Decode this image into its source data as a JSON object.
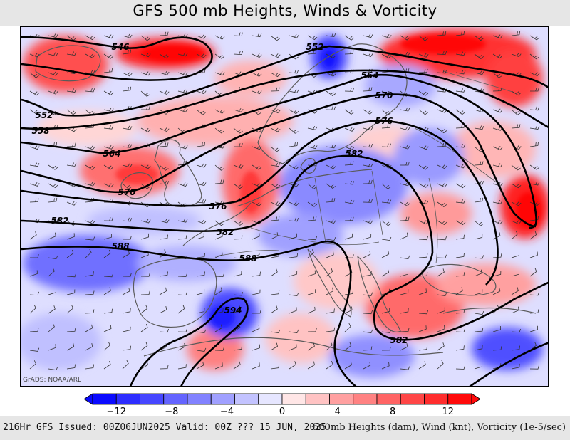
{
  "title": "GFS 500 mb Heights, Winds & Vorticity",
  "credit": "GrADS: NOAA/ARL",
  "footer": {
    "left": "216Hr GFS Issued: 00Z06JUN2025 Valid: 00Z ??? 15 JUN, 2025",
    "right": "500mb Heights (dam), Wind (knt), Vorticity (1e-5/sec)"
  },
  "colors": {
    "negative_max": "#0000ff",
    "neutral": "#ffffff",
    "positive_max": "#ff0000",
    "contour": "#000000",
    "coastline": "#555555"
  },
  "colorbar": {
    "tick_labels": [
      "−12",
      "−8",
      "−4",
      "0",
      "4",
      "8",
      "12"
    ],
    "colors": [
      "#0a0aff",
      "#2d2dff",
      "#4646ff",
      "#6464ff",
      "#8282ff",
      "#a0a0ff",
      "#c3c3ff",
      "#e6e6ff",
      "#ffe6e6",
      "#ffc3c3",
      "#ffa0a0",
      "#ff8282",
      "#ff6464",
      "#ff4646",
      "#ff2d2d",
      "#ff0a0a"
    ]
  },
  "contour_labels": [
    "546",
    "552",
    "558",
    "564",
    "570",
    "576",
    "582",
    "588",
    "594"
  ]
}
